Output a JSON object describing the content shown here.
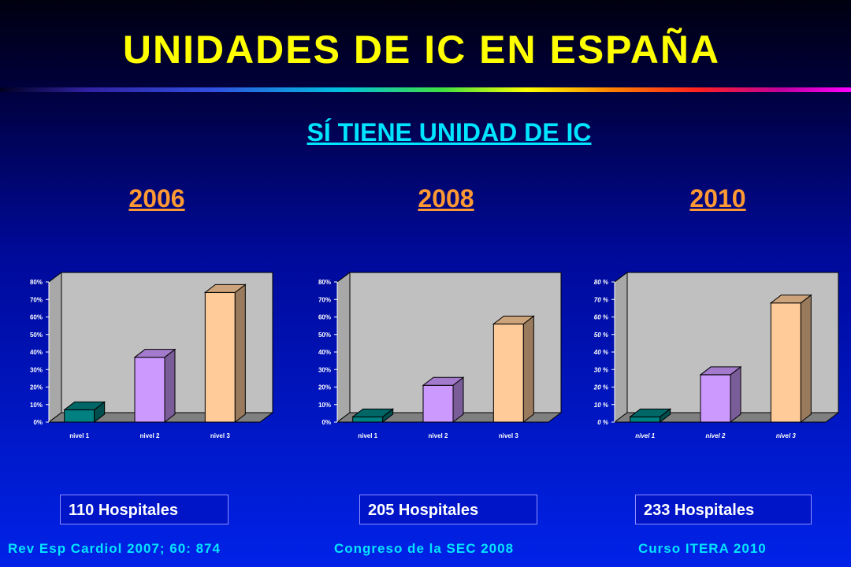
{
  "title": "UNIDADES DE IC EN ESPAÑA",
  "subtitle": "SÍ TIENE UNIDAD DE IC",
  "years": [
    "2006",
    "2008",
    "2010"
  ],
  "hospitals": [
    "110 Hospitales",
    "205 Hospitales",
    "233 Hospitales"
  ],
  "sources": [
    "Rev Esp Cardiol 2007; 60: 874",
    "Congreso de la SEC 2008",
    "Curso ITERA 2010"
  ],
  "colors": {
    "title": "#ffff00",
    "subtitle": "#00e5ff",
    "year": "#ff9933",
    "nivel1": "#008080",
    "nivel2": "#cc99ff",
    "nivel3": "#ffcc99"
  },
  "chart_data": [
    {
      "type": "bar",
      "categories": [
        "nivel 1",
        "nivel 2",
        "nivel 3"
      ],
      "values": [
        7,
        37,
        74
      ],
      "yticks": [
        "0%",
        "10%",
        "20%",
        "30%",
        "40%",
        "50%",
        "60%",
        "70%",
        "80%"
      ],
      "ylim": [
        0,
        80
      ],
      "grid": false
    },
    {
      "type": "bar",
      "categories": [
        "nivel 1",
        "nivel 2",
        "nivel 3"
      ],
      "values": [
        3,
        21,
        56
      ],
      "yticks": [
        "0%",
        "10%",
        "20%",
        "30%",
        "40%",
        "50%",
        "60%",
        "70%",
        "80%"
      ],
      "ylim": [
        0,
        80
      ],
      "grid": false
    },
    {
      "type": "bar",
      "categories": [
        "nivel 1",
        "nivel 2",
        "nivel 3"
      ],
      "values": [
        3,
        27,
        68
      ],
      "yticks": [
        "0 %",
        "10 %",
        "20 %",
        "30 %",
        "40 %",
        "50 %",
        "60 %",
        "70 %",
        "80 %"
      ],
      "ylim": [
        0,
        80
      ],
      "grid": false
    }
  ]
}
